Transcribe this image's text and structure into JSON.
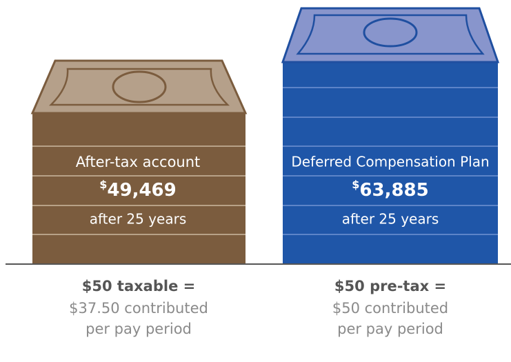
{
  "left": {
    "label": "After-tax account",
    "currency": "$",
    "amount": "49,469",
    "period": "after 25 years",
    "caption_title": "$50 taxable =",
    "caption_lines": [
      "$37.50 contributed",
      "per pay period"
    ]
  },
  "right": {
    "label": "Deferred Compensation Plan",
    "currency": "$",
    "amount": "63,885",
    "period": "after 25 years",
    "caption_title": "$50 pre-tax =",
    "caption_lines": [
      "$50 contributed",
      "per pay period"
    ]
  }
}
